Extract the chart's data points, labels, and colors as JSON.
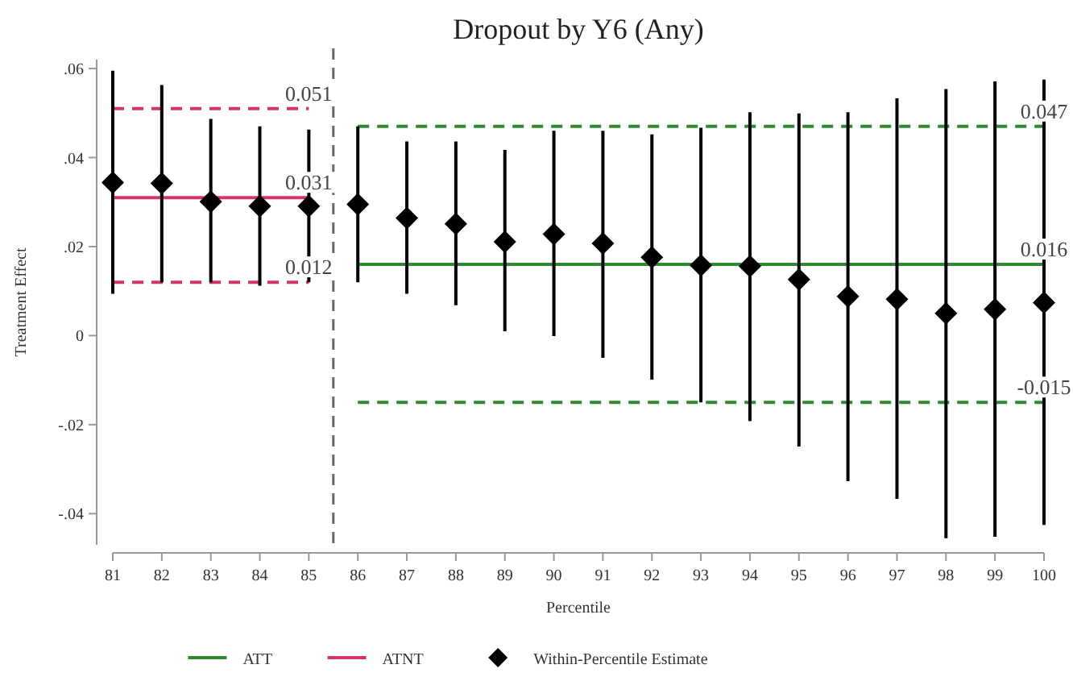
{
  "chart_data": {
    "type": "scatter",
    "title": "Dropout by Y6 (Any)",
    "xlabel": "Percentile",
    "ylabel": "Treatment Effect",
    "xlim": [
      81,
      100
    ],
    "xticks": [
      81,
      82,
      83,
      84,
      85,
      86,
      87,
      88,
      89,
      90,
      91,
      92,
      93,
      94,
      95,
      96,
      97,
      98,
      99,
      100
    ],
    "ylim": [
      -0.047,
      0.062
    ],
    "yticks": [
      {
        "value": -0.04,
        "label": "-.04"
      },
      {
        "value": -0.02,
        "label": "-.02"
      },
      0,
      {
        "value": 0.02,
        "label": ".02"
      },
      {
        "value": 0.04,
        "label": ".04"
      },
      {
        "value": 0.06,
        "label": ".06"
      }
    ],
    "grid": false,
    "legend": "bottom",
    "series": [
      {
        "type": "line",
        "name": "ATT",
        "color": "#2e8b2e",
        "x": [
          86,
          100
        ],
        "values": [
          0.016,
          0.016
        ],
        "line_style": "solid",
        "value_labels": [
          null,
          "0.016"
        ]
      },
      {
        "type": "line",
        "name": "ATNT",
        "color": "#d6336c",
        "x": [
          81,
          85
        ],
        "values": [
          0.031,
          0.031
        ],
        "line_style": "solid",
        "value_labels": [
          null,
          "0.031"
        ]
      },
      {
        "type": "line",
        "color": "#d6336c",
        "x": [
          81,
          85
        ],
        "values": [
          0.051,
          0.051
        ],
        "line_style": "dashed",
        "value_labels": [
          null,
          "0.051"
        ]
      },
      {
        "type": "line",
        "color": "#d6336c",
        "x": [
          81,
          85
        ],
        "values": [
          0.012,
          0.012
        ],
        "line_style": "dashed",
        "value_labels": [
          null,
          "0.012"
        ]
      },
      {
        "type": "line",
        "color": "#2e8b2e",
        "x": [
          86,
          100
        ],
        "values": [
          0.047,
          0.047
        ],
        "line_style": "dashed",
        "value_labels": [
          null,
          "0.047"
        ]
      },
      {
        "type": "line",
        "color": "#2e8b2e",
        "x": [
          86,
          100
        ],
        "values": [
          -0.015,
          -0.015
        ],
        "line_style": "dashed",
        "value_labels": [
          null,
          "-0.015"
        ]
      },
      {
        "type": "scatter",
        "name": "Within-Percentile Estimate",
        "color": "#000000",
        "marker": "diamond",
        "x": [
          81,
          82,
          83,
          84,
          85,
          86,
          87,
          88,
          89,
          90,
          91,
          92,
          93,
          94,
          95,
          96,
          97,
          98,
          99,
          100
        ],
        "values": [
          0.0344,
          0.0342,
          0.0301,
          0.0291,
          0.0291,
          0.0295,
          0.0264,
          0.0251,
          0.0211,
          0.0228,
          0.0207,
          0.0176,
          0.0158,
          0.0156,
          0.0126,
          0.0088,
          0.0082,
          0.005,
          0.0059,
          0.0074
        ],
        "errors": [
          [
            0.0094,
            0.0595
          ],
          [
            0.012,
            0.0563
          ],
          [
            0.012,
            0.0487
          ],
          [
            0.0112,
            0.047
          ],
          [
            0.012,
            0.0463
          ],
          [
            0.012,
            0.047
          ],
          [
            0.0094,
            0.0436
          ],
          [
            0.0068,
            0.0436
          ],
          [
            0.001,
            0.0417
          ],
          [
            -0.0001,
            0.046
          ],
          [
            -0.005,
            0.046
          ],
          [
            -0.0099,
            0.0452
          ],
          [
            -0.015,
            0.0467
          ],
          [
            -0.0192,
            0.0502
          ],
          [
            -0.0249,
            0.0499
          ],
          [
            -0.0327,
            0.0502
          ],
          [
            -0.0367,
            0.0533
          ],
          [
            -0.0455,
            0.0554
          ],
          [
            -0.0452,
            0.0571
          ],
          [
            -0.0425,
            0.0575
          ]
        ]
      }
    ],
    "ref_lines": [
      {
        "axis": "x",
        "value": 85.5,
        "color": "#666666",
        "line_style": "dashed"
      }
    ]
  }
}
